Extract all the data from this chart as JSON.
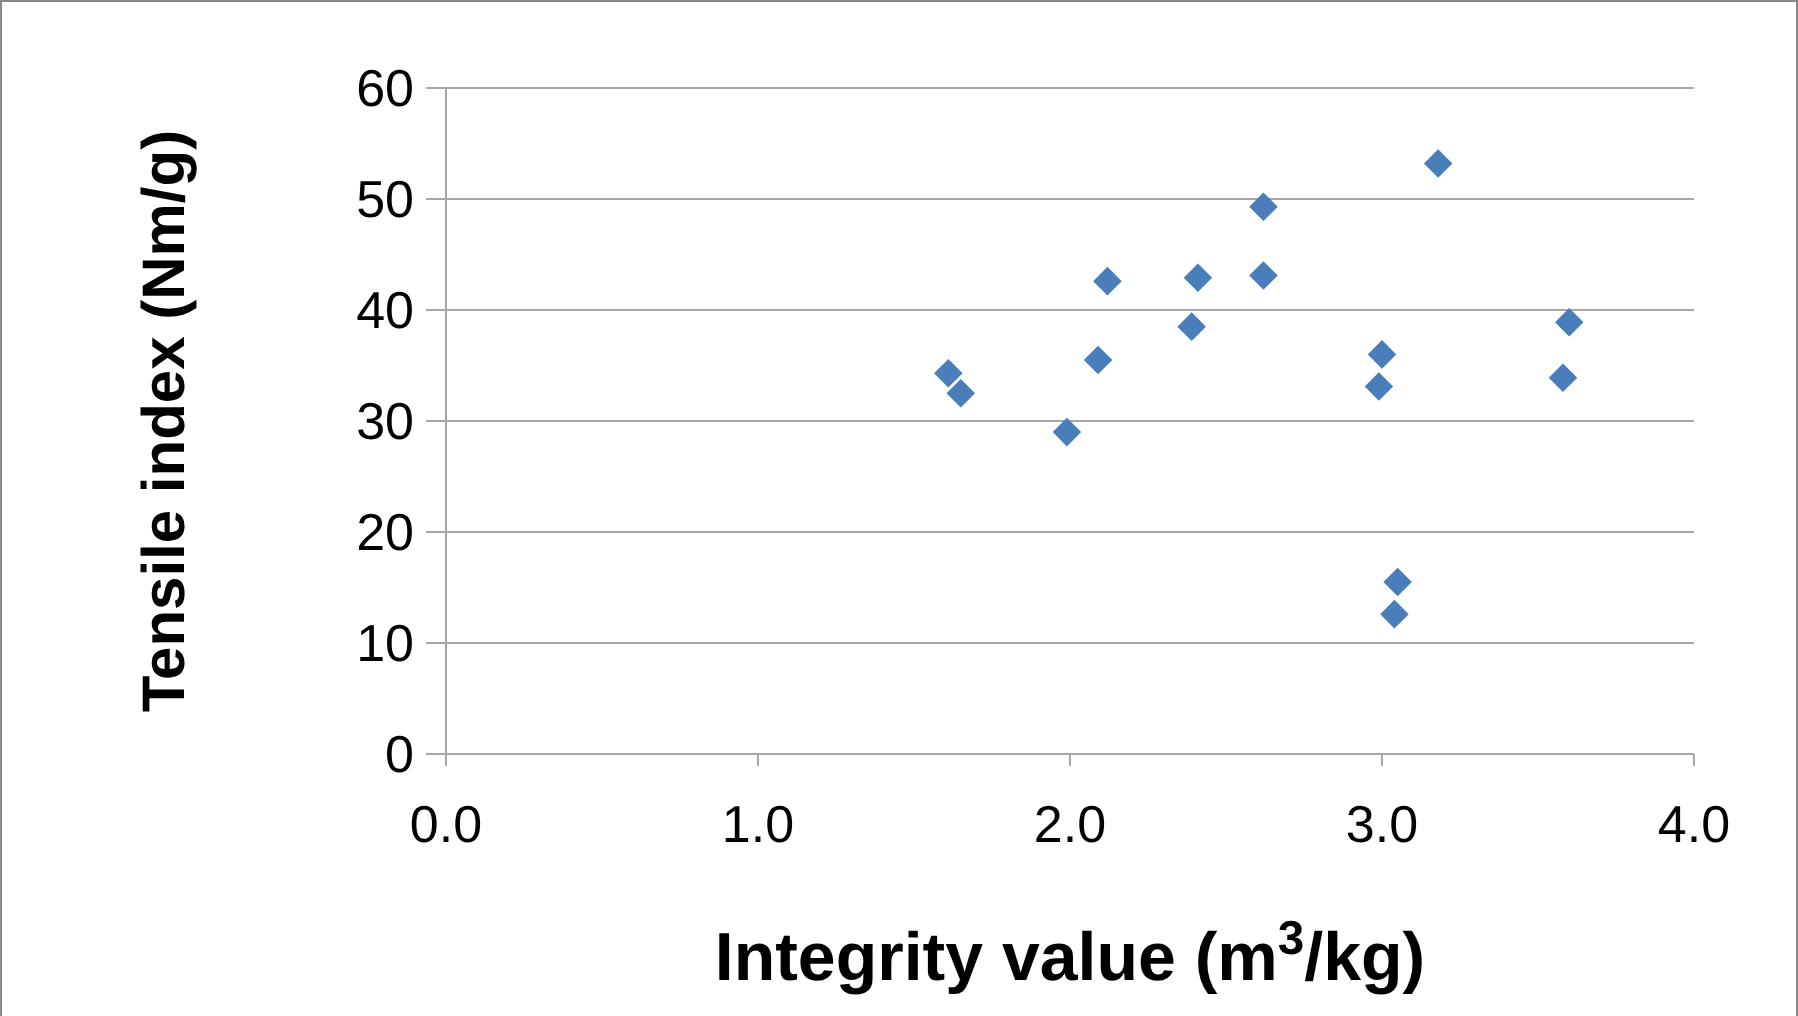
{
  "chart_data": {
    "type": "scatter",
    "xlabel": "Integrity value (m$^{3}$/kg)",
    "ylabel": "Tensile index (Nm/g)",
    "x": [
      1.61,
      1.65,
      1.99,
      2.09,
      2.12,
      2.39,
      2.41,
      2.62,
      2.62,
      2.99,
      3.0,
      3.04,
      3.05,
      3.18,
      3.58,
      3.6
    ],
    "series": [
      {
        "color": "#4a7ebb",
        "values": [
          34.3,
          32.5,
          29.0,
          35.5,
          42.6,
          38.5,
          42.9,
          49.3,
          43.1,
          33.1,
          36.0,
          12.6,
          15.5,
          53.2,
          33.9,
          38.9
        ]
      }
    ],
    "xlim": [
      0,
      4
    ],
    "xticks": [
      {
        "value": 0,
        "label": "0.0"
      },
      {
        "value": 1,
        "label": "1.0"
      },
      {
        "value": 2,
        "label": "2.0"
      },
      {
        "value": 3,
        "label": "3.0"
      },
      {
        "value": 4,
        "label": "4.0"
      }
    ],
    "ylim": [
      0,
      60
    ],
    "yticks": [
      0,
      10,
      20,
      30,
      40,
      50,
      60
    ],
    "grid": "y",
    "marker": "diamond"
  }
}
